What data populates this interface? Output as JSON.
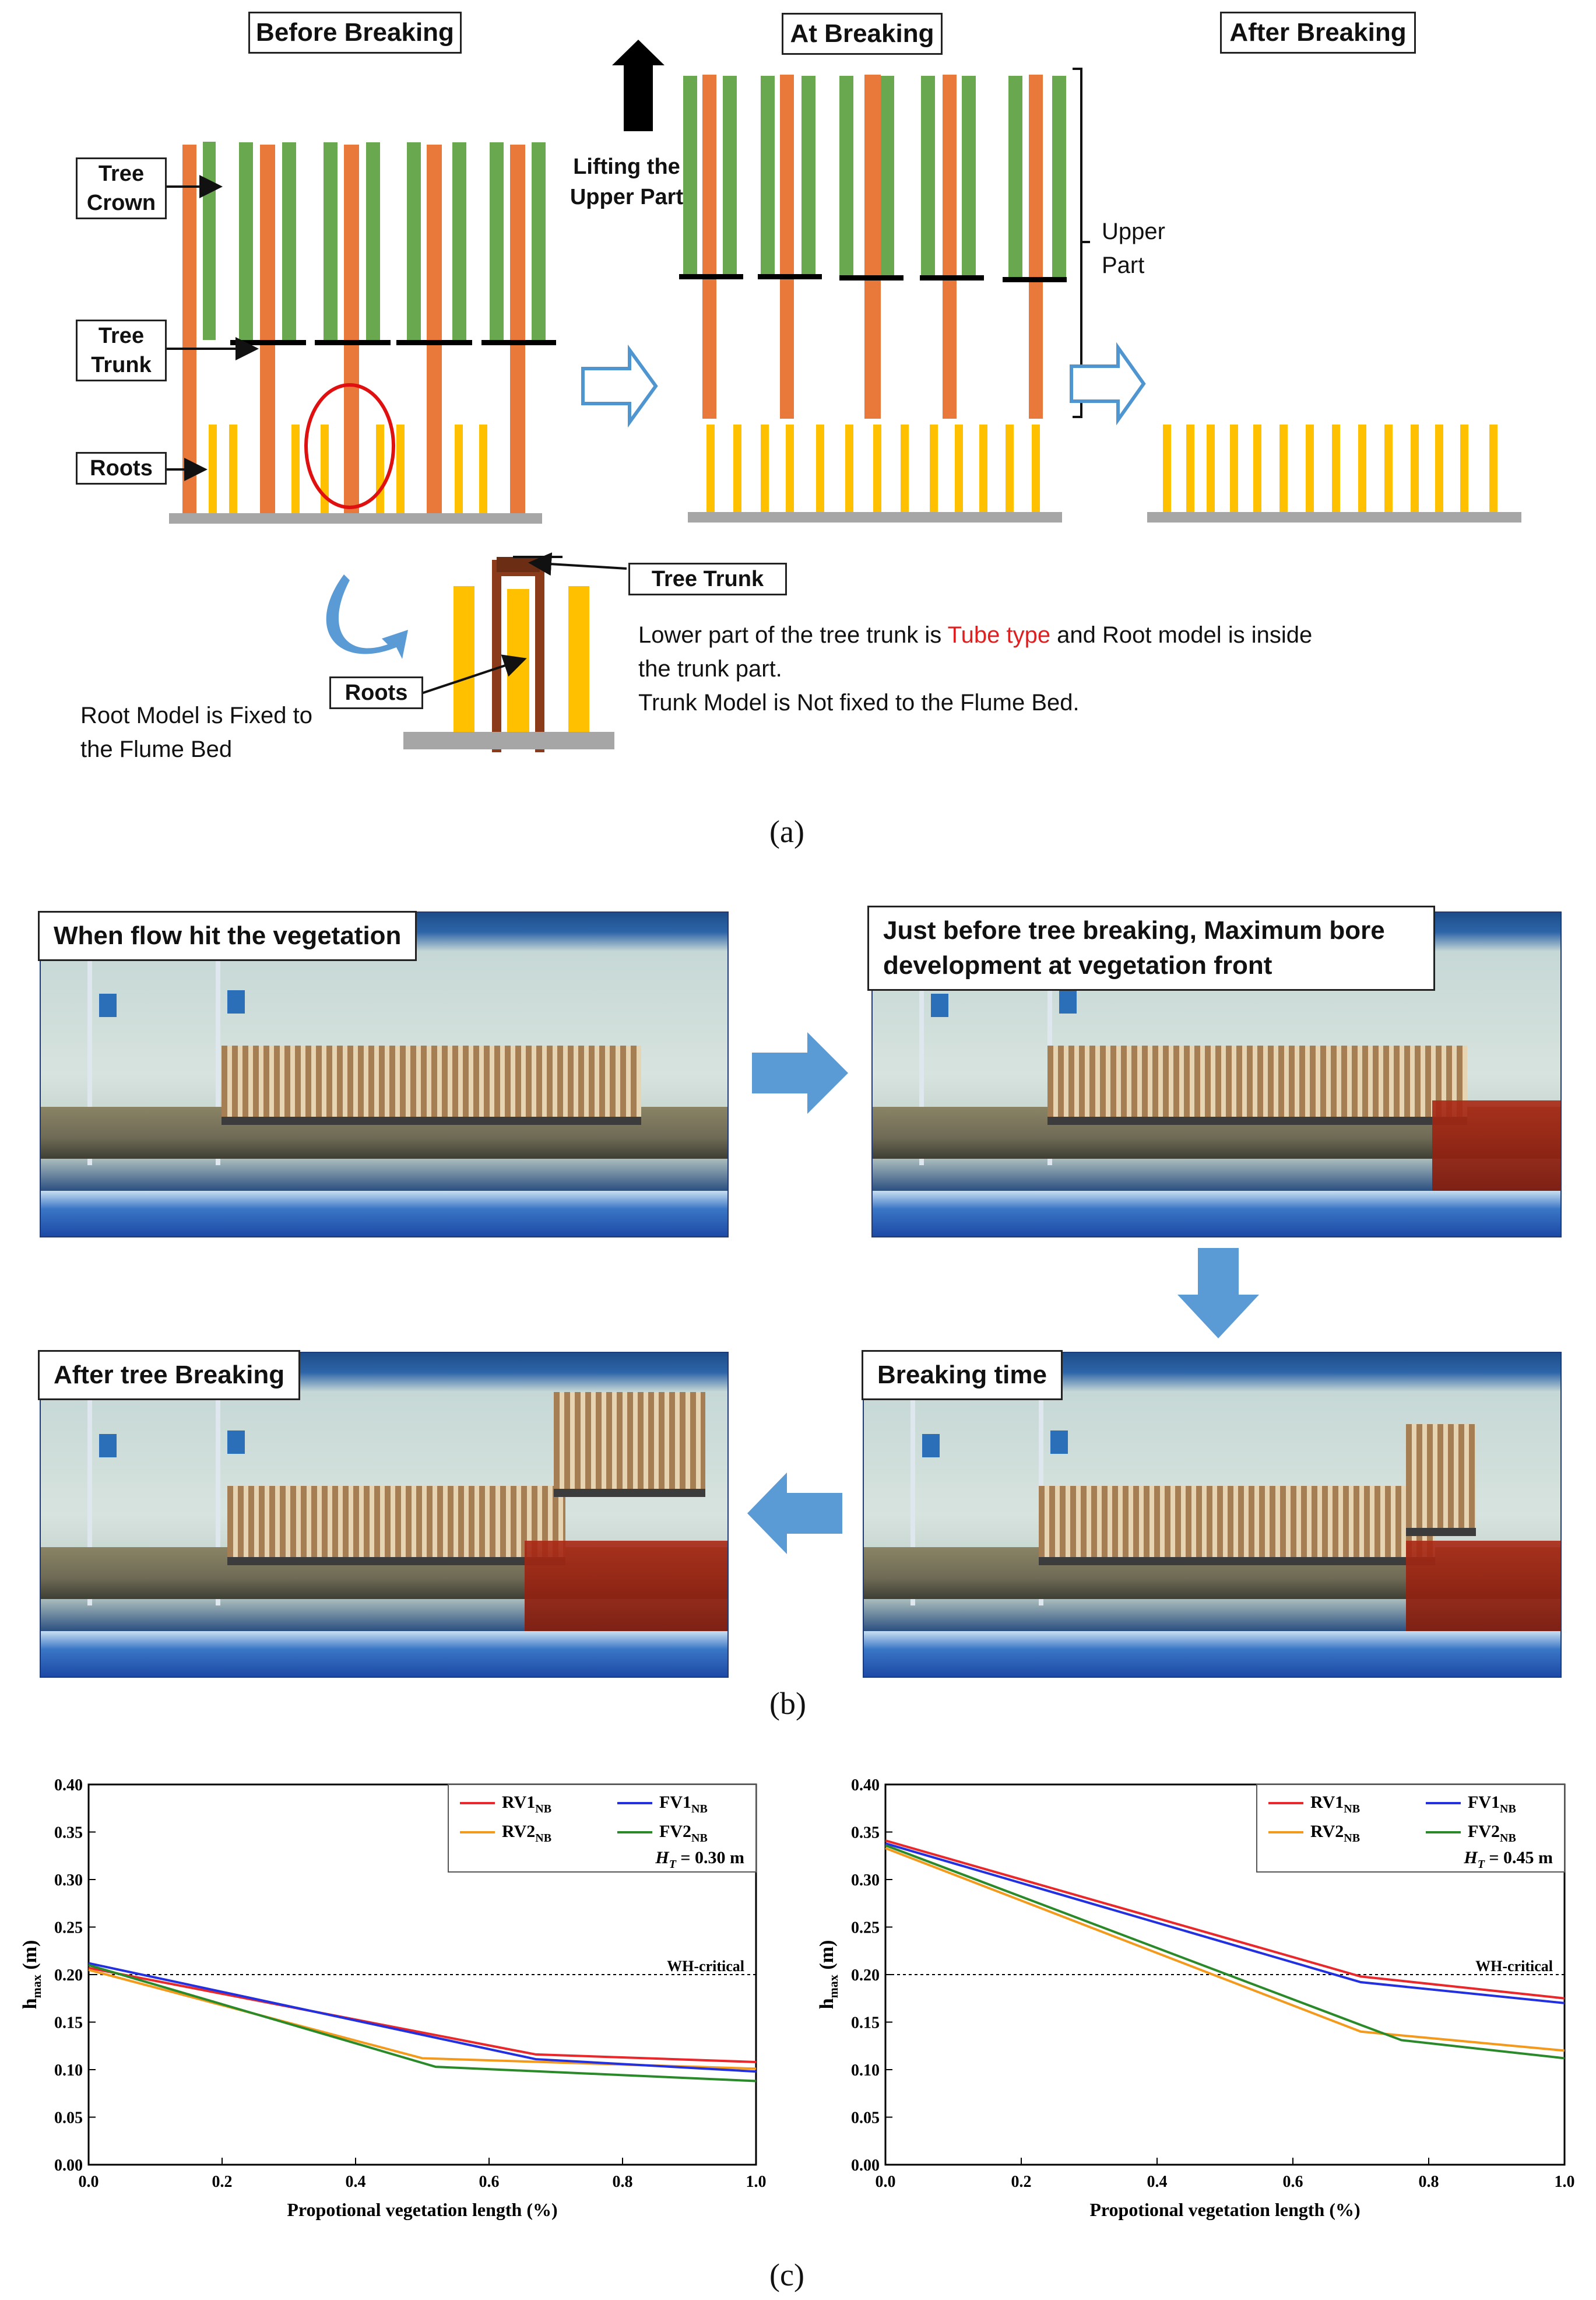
{
  "panel_a": {
    "titles": {
      "before": "Before Breaking",
      "at": "At Breaking",
      "after": "After Breaking"
    },
    "labels": {
      "tree_crown": "Tree Crown",
      "tree_trunk": "Tree Trunk",
      "roots": "Roots",
      "lifting": "Lifting the Upper Part",
      "upper_part": "Upper Part",
      "tree_trunk_detail": "Tree Trunk",
      "roots_detail": "Roots"
    },
    "notes": {
      "root_fixed": "Root Model is Fixed to the Flume Bed",
      "line1_pre": "Lower part of the tree trunk is ",
      "line1_highlight": "Tube type",
      "line1_post": " and Root model is inside",
      "line2": "the trunk part.",
      "line3": "Trunk Model is Not fixed to the Flume Bed."
    },
    "caption": "(a)",
    "colors": {
      "crown": "#6aa84f",
      "trunk": "#e8793a",
      "roots": "#ffc000",
      "bed": "#a6a6a6",
      "highlight": "#e02020",
      "arrow": "#4f95d0",
      "circle": "#e01010"
    }
  },
  "panel_b": {
    "labels": {
      "hit": "When flow hit the vegetation",
      "before": "Just before tree breaking, Maximum bore development at vegetation front",
      "breaking": "Breaking time",
      "after": "After tree Breaking"
    },
    "caption": "(b)",
    "arrow_color": "#5b9bd5"
  },
  "panel_c": {
    "caption": "(c)",
    "chart_data": [
      {
        "type": "line",
        "xlabel": "Propotional vegetation length (%)",
        "ylabel": "h_max (m)",
        "xlim": [
          0.0,
          1.0
        ],
        "ylim": [
          0.0,
          0.4
        ],
        "xticks": [
          "0.0",
          "0.2",
          "0.4",
          "0.6",
          "0.8",
          "1.0"
        ],
        "yticks": [
          "0.00",
          "0.05",
          "0.10",
          "0.15",
          "0.20",
          "0.25",
          "0.30",
          "0.35",
          "0.40"
        ],
        "reference": {
          "label": "WH-critical",
          "y": 0.2
        },
        "annotation": {
          "prefix": "H",
          "sub": "T",
          "suffix": " = 0.30 m"
        },
        "series": [
          {
            "name": "RV1",
            "sub": "NB",
            "color": "#e8282b",
            "x": [
              0.0,
              0.67,
              1.0
            ],
            "y": [
              0.207,
              0.116,
              0.108
            ]
          },
          {
            "name": "RV2",
            "sub": "NB",
            "color": "#f39a1d",
            "x": [
              0.0,
              0.5,
              1.0
            ],
            "y": [
              0.205,
              0.112,
              0.101
            ]
          },
          {
            "name": "FV1",
            "sub": "NB",
            "color": "#2230e0",
            "x": [
              0.0,
              0.67,
              1.0
            ],
            "y": [
              0.212,
              0.111,
              0.098
            ]
          },
          {
            "name": "FV2",
            "sub": "NB",
            "color": "#2a8a2a",
            "x": [
              0.0,
              0.52,
              1.0
            ],
            "y": [
              0.21,
              0.103,
              0.088
            ]
          }
        ]
      },
      {
        "type": "line",
        "xlabel": "Propotional vegetation length (%)",
        "ylabel": "h_max (m)",
        "xlim": [
          0.0,
          1.0
        ],
        "ylim": [
          0.0,
          0.4
        ],
        "xticks": [
          "0.0",
          "0.2",
          "0.4",
          "0.6",
          "0.8",
          "1.0"
        ],
        "yticks": [
          "0.00",
          "0.05",
          "0.10",
          "0.15",
          "0.20",
          "0.25",
          "0.30",
          "0.35",
          "0.40"
        ],
        "reference": {
          "label": "WH-critical",
          "y": 0.2
        },
        "annotation": {
          "prefix": "H",
          "sub": "T",
          "suffix": " = 0.45 m"
        },
        "series": [
          {
            "name": "RV1",
            "sub": "NB",
            "color": "#e8282b",
            "x": [
              0.0,
              0.7,
              1.0
            ],
            "y": [
              0.341,
              0.198,
              0.175
            ]
          },
          {
            "name": "RV2",
            "sub": "NB",
            "color": "#f39a1d",
            "x": [
              0.0,
              0.7,
              1.0
            ],
            "y": [
              0.333,
              0.14,
              0.12
            ]
          },
          {
            "name": "FV1",
            "sub": "NB",
            "color": "#2230e0",
            "x": [
              0.0,
              0.7,
              1.0
            ],
            "y": [
              0.338,
              0.192,
              0.17
            ]
          },
          {
            "name": "FV2",
            "sub": "NB",
            "color": "#2a8a2a",
            "x": [
              0.0,
              0.7,
              0.76,
              1.0
            ],
            "y": [
              0.336,
              0.147,
              0.131,
              0.112
            ]
          }
        ]
      }
    ]
  }
}
